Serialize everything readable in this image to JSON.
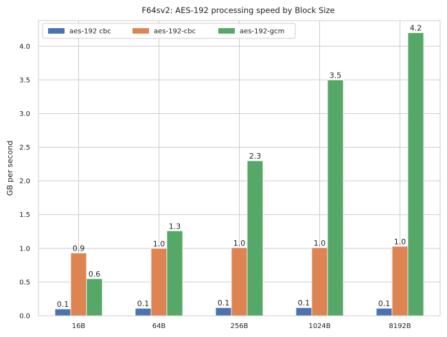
{
  "chart_data": {
    "type": "bar",
    "title": "F64sv2: AES-192 processing speed by Block Size",
    "xlabel": "",
    "ylabel": "GB per second",
    "categories": [
      "16B",
      "64B",
      "256B",
      "1024B",
      "8192B"
    ],
    "ylim": [
      0,
      4.38
    ],
    "yticks": [
      0.0,
      0.5,
      1.0,
      1.5,
      2.0,
      2.5,
      3.0,
      3.5,
      4.0
    ],
    "ytick_labels": [
      "0.0",
      "0.5",
      "1.0",
      "1.5",
      "2.0",
      "2.5",
      "3.0",
      "3.5",
      "4.0"
    ],
    "grid": true,
    "legend_position": "top-left",
    "series": [
      {
        "name": "aes-192 cbc",
        "color": "#4c72b0",
        "values": [
          0.1,
          0.11,
          0.12,
          0.12,
          0.11
        ],
        "labels": [
          "0.1",
          "0.1",
          "0.1",
          "0.1",
          "0.1"
        ]
      },
      {
        "name": "aes-192-cbc",
        "color": "#dd8452",
        "values": [
          0.93,
          1.0,
          1.01,
          1.01,
          1.03
        ],
        "labels": [
          "0.9",
          "1.0",
          "1.0",
          "1.0",
          "1.0"
        ]
      },
      {
        "name": "aes-192-gcm",
        "color": "#55a868",
        "values": [
          0.55,
          1.26,
          2.3,
          3.5,
          4.2
        ],
        "labels": [
          "0.6",
          "1.3",
          "2.3",
          "3.5",
          "4.2"
        ]
      }
    ]
  }
}
